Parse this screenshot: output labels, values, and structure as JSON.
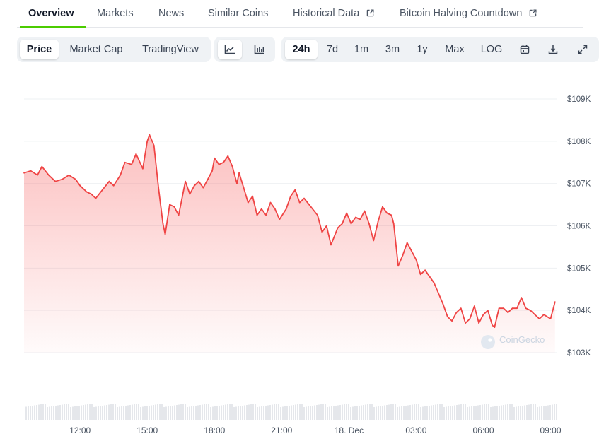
{
  "tabs": [
    {
      "label": "Overview"
    },
    {
      "label": "Markets"
    },
    {
      "label": "News"
    },
    {
      "label": "Similar Coins"
    },
    {
      "label": "Historical Data"
    },
    {
      "label": "Bitcoin Halving Countdown"
    }
  ],
  "chart_type_buttons": [
    "Price",
    "Market Cap",
    "TradingView"
  ],
  "chart_style_icons": [
    "line-chart-icon",
    "candlestick-chart-icon"
  ],
  "range_buttons": [
    "24h",
    "7d",
    "1m",
    "3m",
    "1y",
    "Max",
    "LOG"
  ],
  "tool_icons": [
    "calendar-icon",
    "download-icon",
    "fullscreen-icon"
  ],
  "selected": {
    "chart_type": "Price",
    "style": "line",
    "range": "24h"
  },
  "colors": {
    "accent": "#4bcc00",
    "line": "#ef4444",
    "fill": "#fecaca"
  },
  "watermark": "CoinGecko",
  "chart_data": {
    "type": "area",
    "title": "",
    "xlabel": "",
    "ylabel": "",
    "ylim": [
      102500,
      109500
    ],
    "y_ticks": [
      {
        "value": 109000,
        "label": "$109K"
      },
      {
        "value": 108000,
        "label": "$108K"
      },
      {
        "value": 107000,
        "label": "$107K"
      },
      {
        "value": 106000,
        "label": "$106K"
      },
      {
        "value": 105000,
        "label": "$105K"
      },
      {
        "value": 104000,
        "label": "$104K"
      },
      {
        "value": 103000,
        "label": "$103K"
      }
    ],
    "x_ticks": [
      {
        "h": 12,
        "label": "12:00"
      },
      {
        "h": 15,
        "label": "15:00"
      },
      {
        "h": 18,
        "label": "18:00"
      },
      {
        "h": 21,
        "label": "21:00"
      },
      {
        "h": 24,
        "label": "18. Dec"
      },
      {
        "h": 27,
        "label": "03:00"
      },
      {
        "h": 30,
        "label": "06:00"
      },
      {
        "h": 33,
        "label": "09:00"
      }
    ],
    "xlim_hours": [
      9.5,
      33.3
    ],
    "grid": true,
    "grid_axis": "y",
    "series": [
      {
        "points": [
          [
            9.5,
            107250
          ],
          [
            9.8,
            107300
          ],
          [
            10.1,
            107200
          ],
          [
            10.3,
            107400
          ],
          [
            10.6,
            107200
          ],
          [
            10.9,
            107050
          ],
          [
            11.2,
            107100
          ],
          [
            11.5,
            107200
          ],
          [
            11.8,
            107100
          ],
          [
            12.0,
            106950
          ],
          [
            12.3,
            106800
          ],
          [
            12.5,
            106750
          ],
          [
            12.7,
            106650
          ],
          [
            13.0,
            106850
          ],
          [
            13.3,
            107050
          ],
          [
            13.5,
            106950
          ],
          [
            13.8,
            107200
          ],
          [
            14.0,
            107500
          ],
          [
            14.3,
            107450
          ],
          [
            14.5,
            107700
          ],
          [
            14.8,
            107350
          ],
          [
            15.0,
            108000
          ],
          [
            15.1,
            108150
          ],
          [
            15.3,
            107900
          ],
          [
            15.5,
            106900
          ],
          [
            15.7,
            106050
          ],
          [
            15.8,
            105800
          ],
          [
            16.0,
            106500
          ],
          [
            16.2,
            106450
          ],
          [
            16.4,
            106250
          ],
          [
            16.7,
            107050
          ],
          [
            16.9,
            106750
          ],
          [
            17.1,
            106950
          ],
          [
            17.3,
            107050
          ],
          [
            17.5,
            106900
          ],
          [
            17.7,
            107100
          ],
          [
            17.9,
            107300
          ],
          [
            18.0,
            107600
          ],
          [
            18.2,
            107450
          ],
          [
            18.4,
            107500
          ],
          [
            18.6,
            107650
          ],
          [
            18.8,
            107400
          ],
          [
            19.0,
            107000
          ],
          [
            19.1,
            107250
          ],
          [
            19.3,
            106900
          ],
          [
            19.5,
            106550
          ],
          [
            19.7,
            106700
          ],
          [
            19.9,
            106250
          ],
          [
            20.1,
            106400
          ],
          [
            20.3,
            106250
          ],
          [
            20.5,
            106550
          ],
          [
            20.7,
            106400
          ],
          [
            20.9,
            106150
          ],
          [
            21.2,
            106400
          ],
          [
            21.4,
            106700
          ],
          [
            21.6,
            106850
          ],
          [
            21.8,
            106550
          ],
          [
            22.0,
            106650
          ],
          [
            22.3,
            106450
          ],
          [
            22.6,
            106250
          ],
          [
            22.8,
            105850
          ],
          [
            23.0,
            106000
          ],
          [
            23.2,
            105550
          ],
          [
            23.5,
            105950
          ],
          [
            23.7,
            106050
          ],
          [
            23.9,
            106300
          ],
          [
            24.1,
            106050
          ],
          [
            24.3,
            106200
          ],
          [
            24.5,
            106150
          ],
          [
            24.7,
            106350
          ],
          [
            24.9,
            106050
          ],
          [
            25.1,
            105650
          ],
          [
            25.3,
            106100
          ],
          [
            25.5,
            106450
          ],
          [
            25.7,
            106300
          ],
          [
            25.9,
            106250
          ],
          [
            26.0,
            106050
          ],
          [
            26.2,
            105050
          ],
          [
            26.4,
            105300
          ],
          [
            26.6,
            105600
          ],
          [
            26.8,
            105400
          ],
          [
            27.0,
            105200
          ],
          [
            27.2,
            104850
          ],
          [
            27.4,
            104950
          ],
          [
            27.6,
            104800
          ],
          [
            27.8,
            104650
          ],
          [
            28.0,
            104400
          ],
          [
            28.2,
            104150
          ],
          [
            28.4,
            103850
          ],
          [
            28.6,
            103750
          ],
          [
            28.8,
            103950
          ],
          [
            29.0,
            104050
          ],
          [
            29.2,
            103700
          ],
          [
            29.4,
            103800
          ],
          [
            29.6,
            104100
          ],
          [
            29.8,
            103700
          ],
          [
            30.0,
            103900
          ],
          [
            30.2,
            104000
          ],
          [
            30.4,
            103650
          ],
          [
            30.5,
            103600
          ],
          [
            30.7,
            104050
          ],
          [
            30.9,
            104050
          ],
          [
            31.1,
            103950
          ],
          [
            31.3,
            104050
          ],
          [
            31.5,
            104050
          ],
          [
            31.7,
            104300
          ],
          [
            31.9,
            104050
          ],
          [
            32.1,
            104000
          ],
          [
            32.3,
            103900
          ],
          [
            32.5,
            103800
          ],
          [
            32.7,
            103900
          ],
          [
            33.0,
            103800
          ],
          [
            33.2,
            104200
          ]
        ]
      }
    ]
  }
}
